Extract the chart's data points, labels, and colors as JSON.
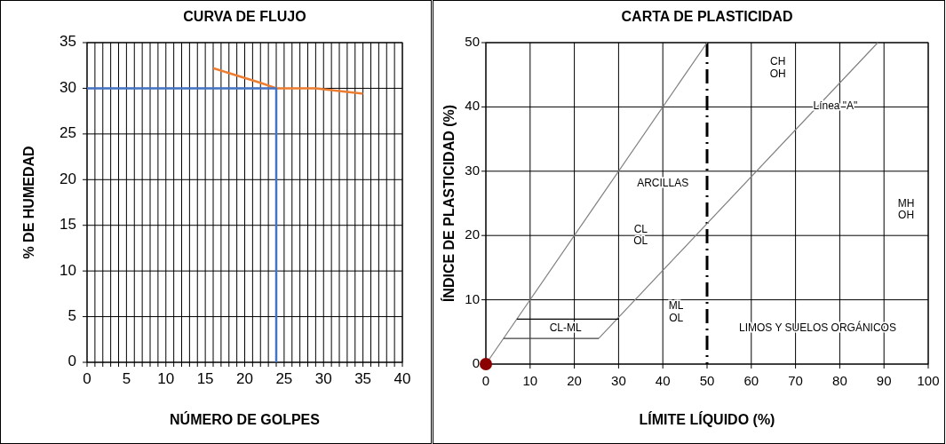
{
  "chart_data": [
    {
      "type": "line",
      "title": "CURVA DE FLUJO",
      "xlabel": "NÚMERO DE GOLPES",
      "ylabel": "% DE HUMEDAD",
      "xlim": [
        0,
        40
      ],
      "ylim": [
        0,
        35
      ],
      "xticks": [
        0,
        {
          "value": 1,
          "label": null
        },
        {
          "value": 2,
          "label": null
        },
        {
          "value": 3,
          "label": null
        },
        {
          "value": 4,
          "label": null
        },
        5,
        {
          "value": 6,
          "label": null
        },
        {
          "value": 7,
          "label": null
        },
        {
          "value": 8,
          "label": null
        },
        {
          "value": 9,
          "label": null
        },
        10,
        {
          "value": 11,
          "label": null
        },
        {
          "value": 12,
          "label": null
        },
        {
          "value": 13,
          "label": null
        },
        {
          "value": 14,
          "label": null
        },
        15,
        {
          "value": 16,
          "label": null
        },
        {
          "value": 17,
          "label": null
        },
        {
          "value": 18,
          "label": null
        },
        {
          "value": 19,
          "label": null
        },
        20,
        {
          "value": 21,
          "label": null
        },
        {
          "value": 22,
          "label": null
        },
        {
          "value": 23,
          "label": null
        },
        {
          "value": 24,
          "label": null
        },
        25,
        {
          "value": 26,
          "label": null
        },
        {
          "value": 27,
          "label": null
        },
        {
          "value": 28,
          "label": null
        },
        {
          "value": 29,
          "label": null
        },
        30,
        {
          "value": 31,
          "label": null
        },
        {
          "value": 32,
          "label": null
        },
        {
          "value": 33,
          "label": null
        },
        {
          "value": 34,
          "label": null
        },
        35,
        {
          "value": 36,
          "label": null
        },
        {
          "value": 37,
          "label": null
        },
        {
          "value": 38,
          "label": null
        },
        {
          "value": 39,
          "label": null
        },
        40
      ],
      "yticks": [
        0,
        5,
        10,
        15,
        20,
        25,
        30,
        35
      ],
      "grid": true,
      "marker": "none",
      "series": [
        {
          "color": "#ed7d31",
          "x": [
            16,
            22,
            24,
            29,
            35
          ],
          "values": [
            32.2,
            30.6,
            30,
            30,
            29.4
          ]
        },
        {
          "color": "#4472c4",
          "x": [
            0,
            24,
            24
          ],
          "values": [
            30,
            30,
            0
          ]
        }
      ]
    },
    {
      "type": "line",
      "title": "CARTA DE PLASTICIDAD",
      "xlabel": "LÍMITE LÍQUIDO (%)",
      "ylabel": "ÍNDICE DE PLASTICIDAD (%)",
      "xlim": [
        0,
        100
      ],
      "ylim": [
        0,
        50
      ],
      "xticks": [
        0,
        10,
        20,
        30,
        40,
        50,
        60,
        70,
        80,
        90,
        100
      ],
      "yticks": [
        0,
        10,
        20,
        30,
        40,
        50
      ],
      "grid": true,
      "series": [
        {
          "color": "#808080",
          "x": [
            0,
            50
          ],
          "values": [
            0,
            50
          ]
        },
        {
          "color": "#808080",
          "x": [
            25.5,
            88.6
          ],
          "values": [
            4,
            50
          ]
        },
        {
          "color": "#000000",
          "x": [
            7,
            30
          ],
          "values": [
            7,
            7
          ]
        },
        {
          "color": "#404040",
          "x": [
            4,
            25.5
          ],
          "values": [
            4,
            4
          ]
        },
        {
          "type": "scatter",
          "color": "#8b0000",
          "x": [
            0
          ],
          "values": [
            0
          ]
        }
      ],
      "ref_lines": [
        {
          "axis": "x",
          "value": 50,
          "color": "#000000",
          "line_style": "dashed"
        }
      ],
      "annotations": [
        "CH\nOH",
        "Línea \"A\"",
        "ARCILLAS",
        "CL\nOL",
        "MH\nOH",
        "ML\nOL",
        "CL-ML",
        "LIMOS Y SUELOS ORGÁNICOS"
      ]
    }
  ]
}
